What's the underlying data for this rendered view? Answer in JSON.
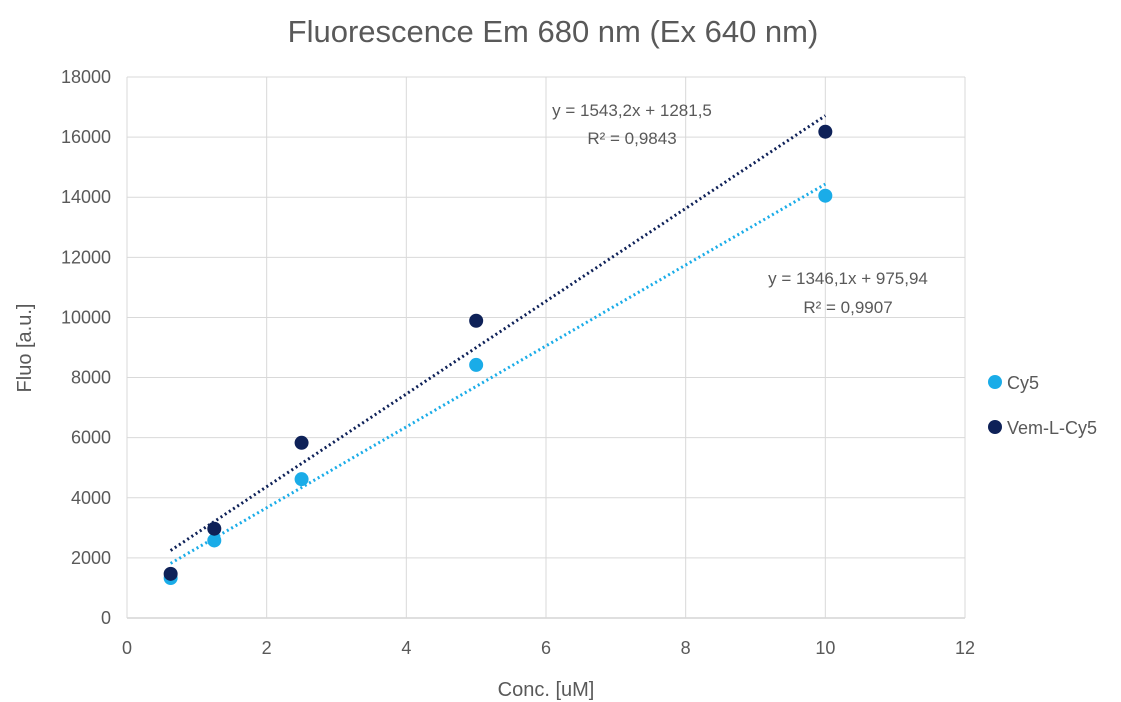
{
  "chart_data": {
    "type": "scatter",
    "title": "Fluorescence Em 680 nm (Ex 640 nm)",
    "xlabel": "Conc. [uM]",
    "ylabel": "Fluo [a.u.]",
    "xlim": [
      0,
      12
    ],
    "ylim": [
      0,
      18000
    ],
    "x_ticks": [
      0,
      2,
      4,
      6,
      8,
      10,
      12
    ],
    "y_ticks": [
      0,
      2000,
      4000,
      6000,
      8000,
      10000,
      12000,
      14000,
      16000,
      18000
    ],
    "grid": true,
    "legend_position": "right",
    "series": [
      {
        "name": "Cy5",
        "color": "#1AACE8",
        "x": [
          0.625,
          1.25,
          2.5,
          5,
          10
        ],
        "y": [
          1330,
          2580,
          4620,
          8420,
          14050
        ],
        "trendline": {
          "type": "linear",
          "slope": 1346.1,
          "intercept": 975.94,
          "equation": "y = 1346,1x + 975,94",
          "r2": "R² = 0,9907"
        }
      },
      {
        "name": "Vem-L-Cy5",
        "color": "#0E2158",
        "x": [
          0.625,
          1.25,
          2.5,
          5,
          10
        ],
        "y": [
          1470,
          2970,
          5830,
          9890,
          16180
        ],
        "trendline": {
          "type": "linear",
          "slope": 1543.2,
          "intercept": 1281.5,
          "equation": "y = 1543,2x + 1281,5",
          "r2": "R² = 0,9843"
        }
      }
    ]
  }
}
